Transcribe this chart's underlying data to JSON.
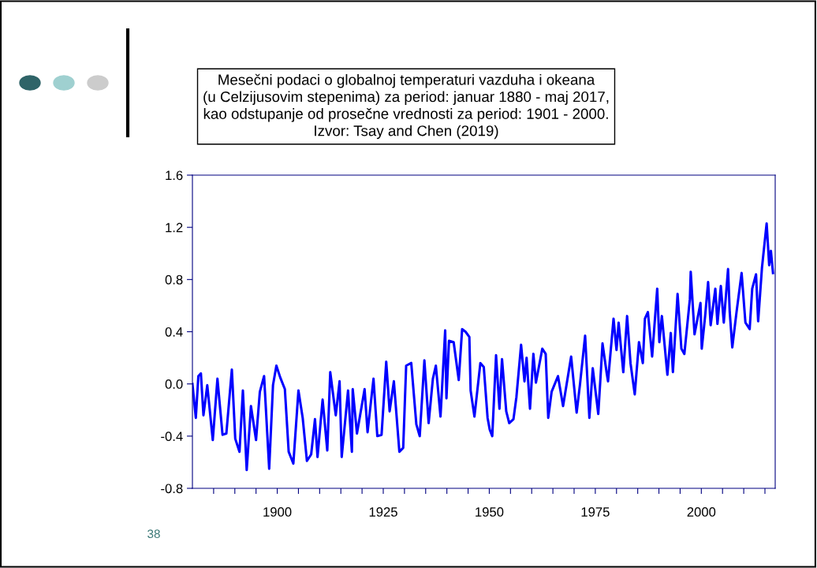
{
  "chart_data": {
    "type": "line",
    "title": "Mesečni podaci o globalnoj temperaturi vazduha i okeana\n(u Celzijusovim stepenima) za period: januar 1880 - maj 2017,\nkao odstupanje od prosečne vrednosti za period: 1901 - 2000.\nIzvor: Tsay and Chen (2019)",
    "annotations": [
      "38"
    ],
    "x": [
      1880.0,
      1880.8,
      1881.4,
      1882.0,
      1882.6,
      1883.5,
      1884.8,
      1885.9,
      1887.1,
      1888.0,
      1889.3,
      1890.1,
      1891.1,
      1891.9,
      1892.8,
      1893.8,
      1895.0,
      1895.9,
      1896.9,
      1898.1,
      1899.0,
      1899.8,
      1900.7,
      1901.8,
      1902.7,
      1903.8,
      1905.0,
      1906.0,
      1907.0,
      1908.0,
      1908.9,
      1909.5,
      1910.7,
      1911.8,
      1912.5,
      1913.8,
      1914.7,
      1915.2,
      1916.7,
      1917.6,
      1917.8,
      1918.8,
      1920.6,
      1921.3,
      1922.7,
      1923.6,
      1924.6,
      1925.7,
      1926.5,
      1927.5,
      1928.8,
      1929.7,
      1930.4,
      1931.6,
      1932.8,
      1933.6,
      1934.7,
      1935.7,
      1936.7,
      1937.4,
      1938.5,
      1939.6,
      1939.9,
      1940.5,
      1941.6,
      1942.8,
      1943.6,
      1944.4,
      1945.3,
      1945.6,
      1946.5,
      1947.9,
      1948.7,
      1949.6,
      1950.1,
      1950.7,
      1951.6,
      1952.4,
      1953.0,
      1954.0,
      1954.7,
      1955.7,
      1956.4,
      1957.5,
      1958.3,
      1958.8,
      1959.6,
      1960.4,
      1961.0,
      1962.5,
      1963.3,
      1963.9,
      1964.7,
      1966.2,
      1967.4,
      1969.3,
      1970.6,
      1971.4,
      1972.6,
      1973.6,
      1974.4,
      1975.7,
      1976.3,
      1976.7,
      1977.7,
      1978.0,
      1979.3,
      1980.0,
      1980.5,
      1981.6,
      1982.5,
      1983.3,
      1984.3,
      1985.3,
      1986.2,
      1986.7,
      1987.4,
      1988.4,
      1989.6,
      1990.1,
      1990.7,
      1992.0,
      1992.8,
      1993.3,
      1994.4,
      1995.3,
      1996.0,
      1997.3,
      1997.5,
      1998.4,
      1999.8,
      2000.1,
      2000.9,
      2001.6,
      2002.2,
      2003.3,
      2003.8,
      2004.6,
      2005.3,
      2006.3,
      2006.7,
      2007.3,
      2008.3,
      2009.5,
      2010.4,
      2011.4,
      2012.0,
      2012.9,
      2013.4,
      2014.3,
      2015.4,
      2016.0,
      2016.4,
      2016.9
    ],
    "series": [
      {
        "color": "#0000ff",
        "values": [
          0.0,
          -0.26,
          0.06,
          0.08,
          -0.24,
          -0.01,
          -0.43,
          0.04,
          -0.39,
          -0.38,
          0.11,
          -0.42,
          -0.52,
          -0.05,
          -0.66,
          -0.17,
          -0.43,
          -0.06,
          0.06,
          -0.65,
          -0.01,
          0.14,
          0.05,
          -0.04,
          -0.52,
          -0.61,
          -0.05,
          -0.26,
          -0.59,
          -0.54,
          -0.27,
          -0.56,
          -0.12,
          -0.51,
          0.09,
          -0.24,
          0.02,
          -0.56,
          -0.05,
          -0.52,
          -0.04,
          -0.38,
          -0.04,
          -0.37,
          0.04,
          -0.4,
          -0.39,
          0.17,
          -0.21,
          0.02,
          -0.52,
          -0.49,
          0.14,
          0.16,
          -0.31,
          -0.4,
          0.18,
          -0.3,
          0.04,
          0.14,
          -0.25,
          0.41,
          -0.11,
          0.33,
          0.32,
          0.03,
          0.42,
          0.4,
          0.36,
          -0.05,
          -0.25,
          0.16,
          0.13,
          -0.26,
          -0.35,
          -0.4,
          0.22,
          -0.19,
          0.19,
          -0.21,
          -0.3,
          -0.27,
          -0.1,
          0.3,
          0.02,
          0.2,
          -0.19,
          0.23,
          0.01,
          0.27,
          0.23,
          -0.26,
          -0.06,
          0.06,
          -0.17,
          0.21,
          -0.22,
          0.0,
          0.37,
          -0.26,
          0.12,
          -0.23,
          0.09,
          0.31,
          0.08,
          0.02,
          0.5,
          0.26,
          0.47,
          0.09,
          0.52,
          0.16,
          -0.08,
          0.32,
          0.16,
          0.5,
          0.55,
          0.21,
          0.73,
          0.32,
          0.52,
          0.07,
          0.39,
          0.09,
          0.69,
          0.27,
          0.23,
          0.65,
          0.86,
          0.38,
          0.62,
          0.27,
          0.52,
          0.78,
          0.45,
          0.73,
          0.46,
          0.75,
          0.47,
          0.88,
          0.55,
          0.28,
          0.55,
          0.85,
          0.47,
          0.42,
          0.73,
          0.84,
          0.48,
          0.89,
          1.23,
          0.91,
          1.02,
          0.85
        ]
      }
    ],
    "xlim": [
      1880.0,
      2017.42
    ],
    "xticks": [
      {
        "value": 1885,
        "label": null
      },
      {
        "value": 1890,
        "label": null
      },
      {
        "value": 1895,
        "label": null
      },
      1900,
      {
        "value": 1905,
        "label": null
      },
      {
        "value": 1910,
        "label": null
      },
      {
        "value": 1915,
        "label": null
      },
      {
        "value": 1920,
        "label": null
      },
      1925,
      {
        "value": 1930,
        "label": null
      },
      {
        "value": 1935,
        "label": null
      },
      {
        "value": 1940,
        "label": null
      },
      {
        "value": 1945,
        "label": null
      },
      1950,
      {
        "value": 1955,
        "label": null
      },
      {
        "value": 1960,
        "label": null
      },
      {
        "value": 1965,
        "label": null
      },
      {
        "value": 1970,
        "label": null
      },
      1975,
      {
        "value": 1980,
        "label": null
      },
      {
        "value": 1985,
        "label": null
      },
      {
        "value": 1990,
        "label": null
      },
      {
        "value": 1995,
        "label": null
      },
      2000,
      {
        "value": 2005,
        "label": null
      },
      {
        "value": 2010,
        "label": null
      },
      {
        "value": 2015,
        "label": null
      }
    ],
    "ylim": [
      -0.8,
      1.6
    ],
    "yticks": [
      -0.8,
      -0.4,
      {
        "value": 0.0,
        "label": "0.0"
      },
      0.4,
      0.8,
      1.2,
      1.6
    ],
    "grid": false,
    "legend": false,
    "marker": "none",
    "line_style": "solid"
  }
}
